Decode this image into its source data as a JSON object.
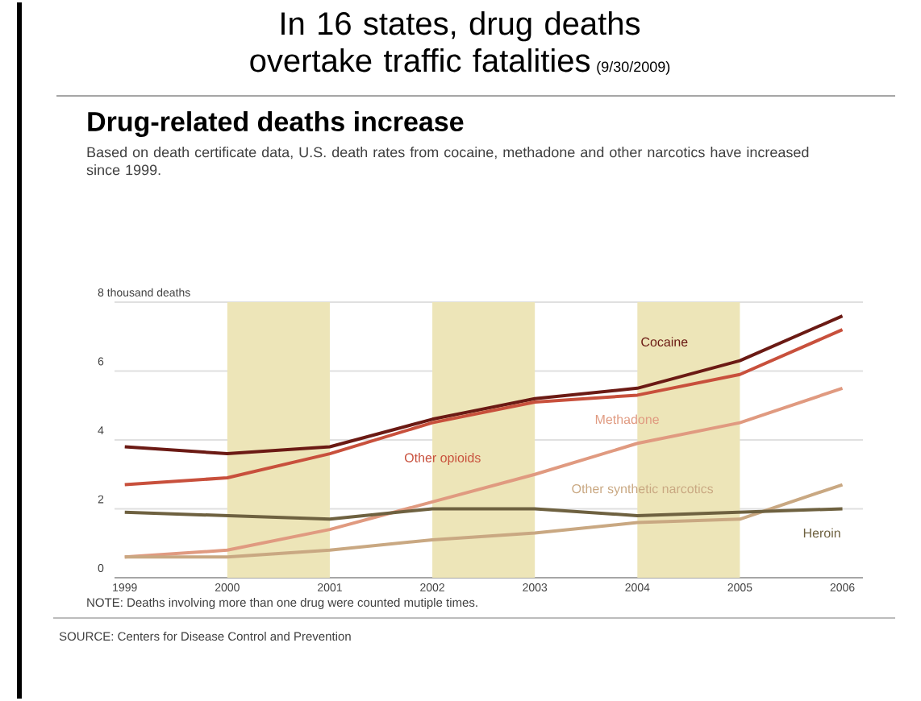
{
  "chart_data": {
    "type": "line",
    "title": "In 16 states, drug deaths overtake traffic fatalities",
    "subtitle": "Drug-related deaths increase",
    "annotations": [
      "(9/30/2009)",
      "Based on death certificate data, U.S. death rates from cocaine, methadone and other narcotics have increased since 1999.",
      "NOTE: Deaths involving more than one drug were counted mutiple times.",
      "SOURCE: Centers for Disease Control and Prevention"
    ],
    "x": [
      1999,
      2000,
      2001,
      2002,
      2003,
      2004,
      2005,
      2006
    ],
    "xlim": [
      1998.9,
      2006.2
    ],
    "xticks": [
      1999,
      2000,
      2001,
      2002,
      2003,
      2004,
      2005,
      2006
    ],
    "ylim": [
      0,
      8
    ],
    "yticks": [
      0,
      2,
      4,
      6,
      {
        "value": 8,
        "label": "8 thousand deaths"
      }
    ],
    "grid": "y",
    "marker": "none",
    "line_style": "solid",
    "bands": [
      {
        "axis": "x",
        "from": 2000,
        "to": 2001,
        "color": "#ede5b8"
      },
      {
        "axis": "x",
        "from": 2002,
        "to": 2003,
        "color": "#ede5b8"
      },
      {
        "axis": "x",
        "from": 2004,
        "to": 2005,
        "color": "#ede5b8"
      }
    ],
    "series": [
      {
        "name": "Cocaine",
        "color": "#6b1a14",
        "values": [
          3.8,
          3.6,
          3.8,
          4.6,
          5.2,
          5.5,
          6.3,
          7.6
        ]
      },
      {
        "name": "Other opioids",
        "color": "#c8503c",
        "values": [
          2.7,
          2.9,
          3.6,
          4.5,
          5.1,
          5.3,
          5.9,
          7.2
        ]
      },
      {
        "name": "Methadone",
        "color": "#e09a80",
        "values": [
          0.6,
          0.8,
          1.4,
          2.2,
          3.0,
          3.9,
          4.5,
          5.5
        ]
      },
      {
        "name": "Other synthetic narcotics",
        "color": "#c9a882",
        "values": [
          0.6,
          0.6,
          0.8,
          1.1,
          1.3,
          1.6,
          1.7,
          2.7
        ]
      },
      {
        "name": "Heroin",
        "color": "#6e6140",
        "values": [
          1.9,
          1.8,
          1.7,
          2.0,
          2.0,
          1.8,
          1.9,
          2.0
        ]
      }
    ]
  }
}
